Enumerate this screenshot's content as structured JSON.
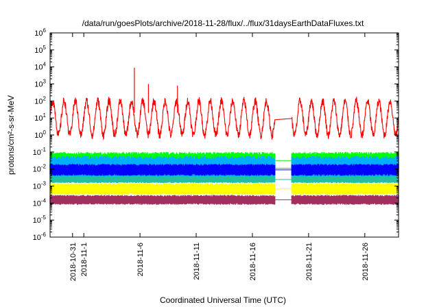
{
  "chart_data": {
    "type": "line",
    "title": "/data/run/goesPlots/archive/2018-11-28/flux/../flux/31daysEarthDataFluxes.txt",
    "xlabel": "Coordinated Universal Time (UTC)",
    "ylabel": "protons/cm²-s-sr-MeV",
    "y_scale": "log",
    "grid": false,
    "x_range": [
      "2018-10-29",
      "2018-11-29"
    ],
    "y_range": [
      1e-06,
      1000000.0
    ],
    "x_ticks": [
      {
        "date": "2018-10-31",
        "label": "2018-10-31"
      },
      {
        "date": "2018-11-01",
        "label": "2018-11-1"
      },
      {
        "date": "2018-11-06",
        "label": "2018-11-6"
      },
      {
        "date": "2018-11-11",
        "label": "2018-11-11"
      },
      {
        "date": "2018-11-16",
        "label": "2018-11-16"
      },
      {
        "date": "2018-11-21",
        "label": "2018-11-21"
      },
      {
        "date": "2018-11-26",
        "label": "2018-11-26"
      }
    ],
    "y_ticks": [
      {
        "value": 1e-06,
        "base": "10",
        "exp": "-6"
      },
      {
        "value": 1e-05,
        "base": "10",
        "exp": "-5"
      },
      {
        "value": 0.0001,
        "base": "10",
        "exp": "-4"
      },
      {
        "value": 0.001,
        "base": "10",
        "exp": "-3"
      },
      {
        "value": 0.01,
        "base": "10",
        "exp": "-2"
      },
      {
        "value": 0.1,
        "base": "10",
        "exp": "-1"
      },
      {
        "value": 1,
        "base": "10",
        "exp": "0"
      },
      {
        "value": 10,
        "base": "10",
        "exp": "1"
      },
      {
        "value": 100,
        "base": "10",
        "exp": "2"
      },
      {
        "value": 1000,
        "base": "10",
        "exp": "3"
      },
      {
        "value": 10000,
        "base": "10",
        "exp": "4"
      },
      {
        "value": 100000,
        "base": "10",
        "exp": "5"
      },
      {
        "value": 1000000,
        "base": "10",
        "exp": "6"
      }
    ],
    "data_gap": [
      "2018-11-18T00:00",
      "2018-11-19T12:00"
    ],
    "series": [
      {
        "color": "#ff0000",
        "style": "line",
        "typical": [
          1,
          100
        ],
        "peaks": [
          {
            "date": "2018-11-05T12:00",
            "value": 9000
          },
          {
            "date": "2018-11-06T18:00",
            "value": 1000
          },
          {
            "date": "2018-11-09T08:00",
            "value": 800
          }
        ]
      },
      {
        "color": "#00ff00",
        "style": "band",
        "range": [
          0.01,
          0.1
        ]
      },
      {
        "color": "#00b0ff",
        "style": "band",
        "range": [
          0.002,
          0.06
        ]
      },
      {
        "color": "#0000ff",
        "style": "band",
        "range": [
          0.004,
          0.02
        ]
      },
      {
        "color": "#20c0a0",
        "style": "band",
        "range": [
          0.0015,
          0.004
        ]
      },
      {
        "color": "#ffff00",
        "style": "band",
        "range": [
          0.0003,
          0.0015
        ]
      },
      {
        "color": "#a03060",
        "style": "band",
        "range": [
          8e-05,
          0.0003
        ]
      }
    ]
  }
}
